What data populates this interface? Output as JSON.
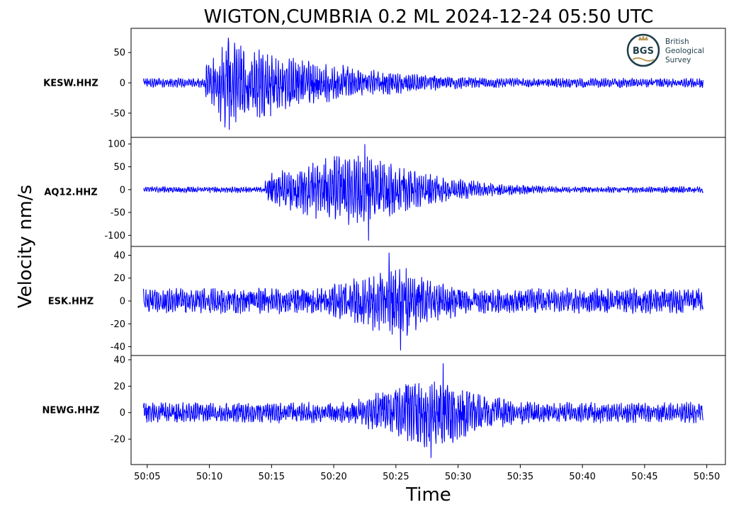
{
  "chart_data": {
    "type": "line",
    "title": "WIGTON,CUMBRIA 0.2 ML   2024-12-24 05:50 UTC",
    "xlabel": "Time",
    "ylabel": "Velocity nm/s",
    "line_color": "#0000ff",
    "x_range_seconds": [
      3.7,
      51.5
    ],
    "x_ticks": [
      "50:05",
      "50:10",
      "50:15",
      "50:20",
      "50:25",
      "50:30",
      "50:35",
      "50:40",
      "50:45",
      "50:50"
    ],
    "x_tick_seconds": [
      5,
      10,
      15,
      20,
      25,
      30,
      35,
      40,
      45,
      50
    ],
    "trace_start_seconds": 4.7,
    "trace_end_seconds": 49.7,
    "panels": [
      {
        "station": "KESW.HHZ",
        "ylim": [
          -83,
          83
        ],
        "yticks": [
          50,
          0,
          -50
        ],
        "ytick_labels": [
          "50",
          "0",
          "-50"
        ],
        "noise_amplitude": 7,
        "onset_seconds": 9.7,
        "peak_seconds": 11.5,
        "peak_amplitude": 72,
        "decay_seconds": 9,
        "max": 74,
        "min": -77
      },
      {
        "station": "AQ12.HHZ",
        "ylim": [
          -115,
          105
        ],
        "yticks": [
          100,
          50,
          0,
          -50,
          -100
        ],
        "ytick_labels": [
          "100",
          "50",
          "0",
          "-50",
          "-100"
        ],
        "noise_amplitude": 6,
        "onset_seconds": 14.5,
        "peak_seconds": 22.0,
        "peak_amplitude": 80,
        "decay_seconds": 6,
        "max": 99,
        "min": -111
      },
      {
        "station": "ESK.HHZ",
        "ylim": [
          -44,
          44
        ],
        "yticks": [
          40,
          20,
          0,
          -20,
          -40
        ],
        "ytick_labels": [
          "40",
          "20",
          "0",
          "-20",
          "-40"
        ],
        "noise_amplitude": 10,
        "onset_seconds": 19.0,
        "peak_seconds": 25.5,
        "peak_amplitude": 30,
        "decay_seconds": 5,
        "max": 42,
        "min": -43
      },
      {
        "station": "NEWG.HHZ",
        "ylim": [
          -36,
          40
        ],
        "yticks": [
          40,
          20,
          0,
          -20
        ],
        "ytick_labels": [
          "40",
          "20",
          "0",
          "-20"
        ],
        "noise_amplitude": 7,
        "onset_seconds": 22.0,
        "peak_seconds": 28.0,
        "peak_amplitude": 26,
        "decay_seconds": 6,
        "max": 37,
        "min": -34
      }
    ],
    "grid": false
  },
  "logo": {
    "initials": "BGS",
    "line1": "British",
    "line2": "Geological",
    "line3": "Survey"
  }
}
